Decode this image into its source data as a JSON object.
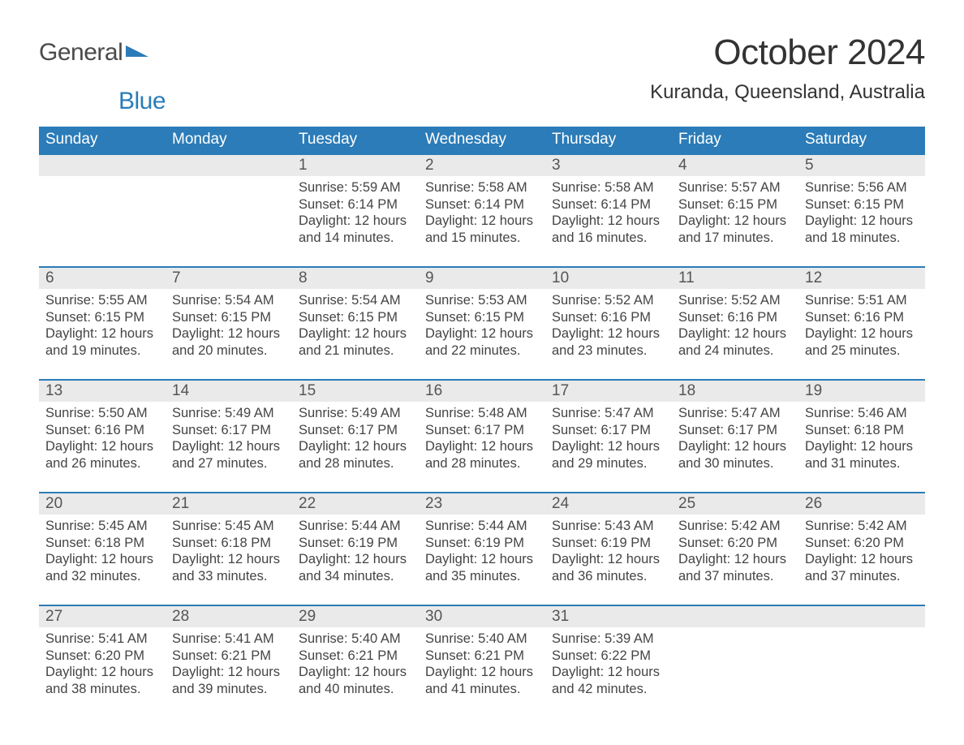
{
  "brand": {
    "word1": "General",
    "word2": "Blue",
    "text_color_1": "#4a4a4a",
    "text_color_2": "#2b7cb8",
    "mark_color": "#2b7cb8"
  },
  "header": {
    "month_title": "October 2024",
    "location": "Kuranda, Queensland, Australia"
  },
  "styling": {
    "page_background": "#ffffff",
    "header_row_bg": "#2b7cb8",
    "header_row_text": "#ffffff",
    "daynum_bg": "#eaeaea",
    "daynum_border_top": "#2b7cb8",
    "body_text_color": "#444444",
    "title_fontsize": 44,
    "location_fontsize": 24,
    "dayheader_fontsize": 19,
    "daynum_fontsize": 19,
    "cell_fontsize": 16.5,
    "font_family": "Arial"
  },
  "calendar": {
    "day_headers": [
      "Sunday",
      "Monday",
      "Tuesday",
      "Wednesday",
      "Thursday",
      "Friday",
      "Saturday"
    ],
    "weeks": [
      [
        null,
        null,
        {
          "n": "1",
          "sunrise": "5:59 AM",
          "sunset": "6:14 PM",
          "dl1": "12 hours",
          "dl2": "and 14 minutes."
        },
        {
          "n": "2",
          "sunrise": "5:58 AM",
          "sunset": "6:14 PM",
          "dl1": "12 hours",
          "dl2": "and 15 minutes."
        },
        {
          "n": "3",
          "sunrise": "5:58 AM",
          "sunset": "6:14 PM",
          "dl1": "12 hours",
          "dl2": "and 16 minutes."
        },
        {
          "n": "4",
          "sunrise": "5:57 AM",
          "sunset": "6:15 PM",
          "dl1": "12 hours",
          "dl2": "and 17 minutes."
        },
        {
          "n": "5",
          "sunrise": "5:56 AM",
          "sunset": "6:15 PM",
          "dl1": "12 hours",
          "dl2": "and 18 minutes."
        }
      ],
      [
        {
          "n": "6",
          "sunrise": "5:55 AM",
          "sunset": "6:15 PM",
          "dl1": "12 hours",
          "dl2": "and 19 minutes."
        },
        {
          "n": "7",
          "sunrise": "5:54 AM",
          "sunset": "6:15 PM",
          "dl1": "12 hours",
          "dl2": "and 20 minutes."
        },
        {
          "n": "8",
          "sunrise": "5:54 AM",
          "sunset": "6:15 PM",
          "dl1": "12 hours",
          "dl2": "and 21 minutes."
        },
        {
          "n": "9",
          "sunrise": "5:53 AM",
          "sunset": "6:15 PM",
          "dl1": "12 hours",
          "dl2": "and 22 minutes."
        },
        {
          "n": "10",
          "sunrise": "5:52 AM",
          "sunset": "6:16 PM",
          "dl1": "12 hours",
          "dl2": "and 23 minutes."
        },
        {
          "n": "11",
          "sunrise": "5:52 AM",
          "sunset": "6:16 PM",
          "dl1": "12 hours",
          "dl2": "and 24 minutes."
        },
        {
          "n": "12",
          "sunrise": "5:51 AM",
          "sunset": "6:16 PM",
          "dl1": "12 hours",
          "dl2": "and 25 minutes."
        }
      ],
      [
        {
          "n": "13",
          "sunrise": "5:50 AM",
          "sunset": "6:16 PM",
          "dl1": "12 hours",
          "dl2": "and 26 minutes."
        },
        {
          "n": "14",
          "sunrise": "5:49 AM",
          "sunset": "6:17 PM",
          "dl1": "12 hours",
          "dl2": "and 27 minutes."
        },
        {
          "n": "15",
          "sunrise": "5:49 AM",
          "sunset": "6:17 PM",
          "dl1": "12 hours",
          "dl2": "and 28 minutes."
        },
        {
          "n": "16",
          "sunrise": "5:48 AM",
          "sunset": "6:17 PM",
          "dl1": "12 hours",
          "dl2": "and 28 minutes."
        },
        {
          "n": "17",
          "sunrise": "5:47 AM",
          "sunset": "6:17 PM",
          "dl1": "12 hours",
          "dl2": "and 29 minutes."
        },
        {
          "n": "18",
          "sunrise": "5:47 AM",
          "sunset": "6:17 PM",
          "dl1": "12 hours",
          "dl2": "and 30 minutes."
        },
        {
          "n": "19",
          "sunrise": "5:46 AM",
          "sunset": "6:18 PM",
          "dl1": "12 hours",
          "dl2": "and 31 minutes."
        }
      ],
      [
        {
          "n": "20",
          "sunrise": "5:45 AM",
          "sunset": "6:18 PM",
          "dl1": "12 hours",
          "dl2": "and 32 minutes."
        },
        {
          "n": "21",
          "sunrise": "5:45 AM",
          "sunset": "6:18 PM",
          "dl1": "12 hours",
          "dl2": "and 33 minutes."
        },
        {
          "n": "22",
          "sunrise": "5:44 AM",
          "sunset": "6:19 PM",
          "dl1": "12 hours",
          "dl2": "and 34 minutes."
        },
        {
          "n": "23",
          "sunrise": "5:44 AM",
          "sunset": "6:19 PM",
          "dl1": "12 hours",
          "dl2": "and 35 minutes."
        },
        {
          "n": "24",
          "sunrise": "5:43 AM",
          "sunset": "6:19 PM",
          "dl1": "12 hours",
          "dl2": "and 36 minutes."
        },
        {
          "n": "25",
          "sunrise": "5:42 AM",
          "sunset": "6:20 PM",
          "dl1": "12 hours",
          "dl2": "and 37 minutes."
        },
        {
          "n": "26",
          "sunrise": "5:42 AM",
          "sunset": "6:20 PM",
          "dl1": "12 hours",
          "dl2": "and 37 minutes."
        }
      ],
      [
        {
          "n": "27",
          "sunrise": "5:41 AM",
          "sunset": "6:20 PM",
          "dl1": "12 hours",
          "dl2": "and 38 minutes."
        },
        {
          "n": "28",
          "sunrise": "5:41 AM",
          "sunset": "6:21 PM",
          "dl1": "12 hours",
          "dl2": "and 39 minutes."
        },
        {
          "n": "29",
          "sunrise": "5:40 AM",
          "sunset": "6:21 PM",
          "dl1": "12 hours",
          "dl2": "and 40 minutes."
        },
        {
          "n": "30",
          "sunrise": "5:40 AM",
          "sunset": "6:21 PM",
          "dl1": "12 hours",
          "dl2": "and 41 minutes."
        },
        {
          "n": "31",
          "sunrise": "5:39 AM",
          "sunset": "6:22 PM",
          "dl1": "12 hours",
          "dl2": "and 42 minutes."
        },
        null,
        null
      ]
    ],
    "labels": {
      "sunrise_prefix": "Sunrise: ",
      "sunset_prefix": "Sunset: ",
      "daylight_prefix": "Daylight: "
    }
  }
}
